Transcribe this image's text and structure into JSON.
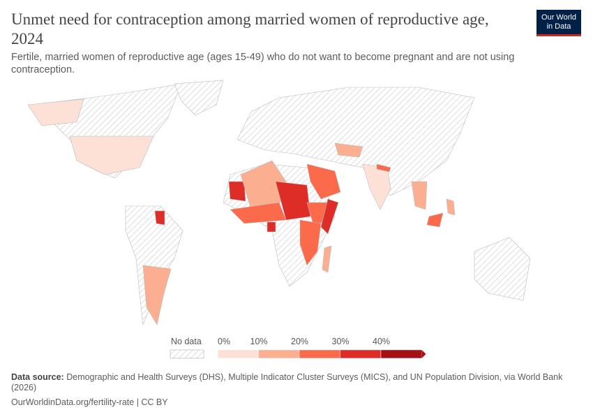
{
  "header": {
    "title": "Unmet need for contraception among married women of reproductive age, 2024",
    "subtitle": "Fertile, married women of reproductive age (ages 15-49) who do not want to become pregnant and are not using contraception.",
    "logo": "Our World in Data"
  },
  "legend": {
    "no_data_label": "No data",
    "ticks": [
      "0%",
      "10%",
      "20%",
      "30%",
      "40%"
    ],
    "bins": [
      0,
      10,
      20,
      30,
      40
    ],
    "colors": [
      "#fde1d6",
      "#fcae91",
      "#fb6a4a",
      "#de2d26",
      "#a50f15"
    ],
    "no_data_color": "#e0e0e0"
  },
  "footer": {
    "source_label": "Data source:",
    "source_text": "Demographic and Health Surveys (DHS), Multiple Indicator Cluster Surveys (MICS), and UN Population Division, via World Bank (2026)",
    "url": "OurWorldinData.org/fertility-rate | CC BY"
  }
}
